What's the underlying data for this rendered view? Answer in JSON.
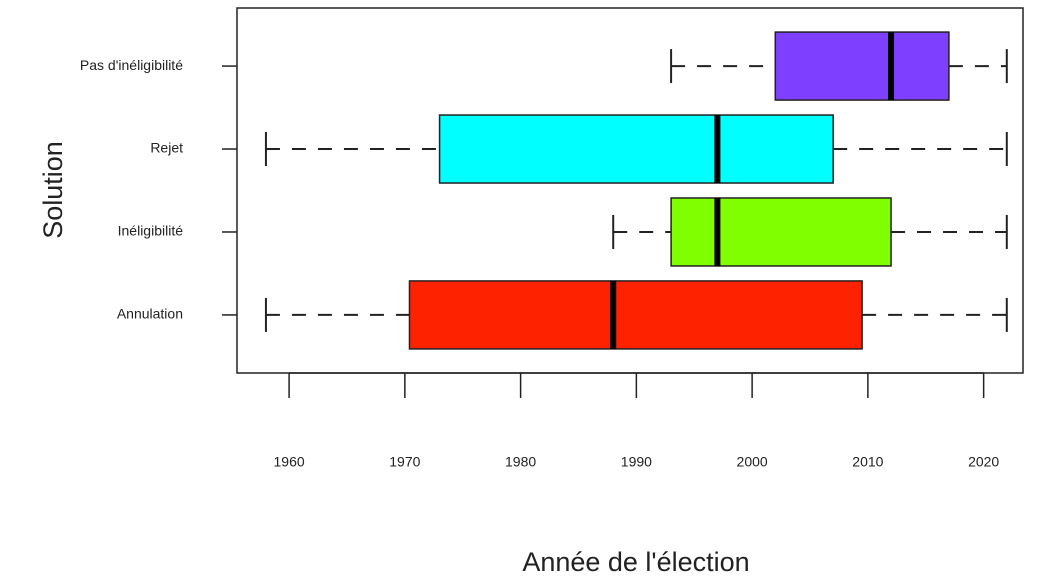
{
  "chart_data": {
    "type": "boxplot",
    "orientation": "horizontal",
    "xlabel": "Année de l'élection",
    "ylabel": "Solution",
    "categories": [
      "Annulation",
      "Inéligibilité",
      "Rejet",
      "Pas d'inéligibilité"
    ],
    "colors": [
      "#ff2200",
      "#7fff00",
      "#00ffff",
      "#7f3fff"
    ],
    "min": [
      1958,
      1988,
      1958,
      1993
    ],
    "q1": [
      1970.4,
      1993,
      1973,
      2002
    ],
    "median": [
      1988,
      1997,
      1997,
      2012
    ],
    "q3": [
      2009.5,
      2012,
      2007,
      2017
    ],
    "max": [
      2022,
      2022,
      2022,
      2022
    ],
    "xlim": [
      1955.5,
      2023.4
    ],
    "xticks": [
      1960,
      1970,
      1980,
      1990,
      2000,
      2010,
      2020
    ]
  }
}
